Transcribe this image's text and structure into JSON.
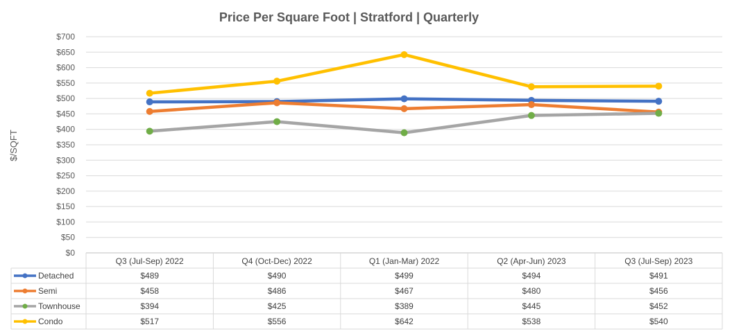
{
  "chart_data": {
    "type": "line",
    "title": "Price Per Square Foot | Stratford | Quarterly",
    "xlabel": "",
    "ylabel": "$/SQFT",
    "ylim": [
      0,
      700
    ],
    "ytick_step": 50,
    "y_tick_labels": [
      "$0",
      "$50",
      "$100",
      "$150",
      "$200",
      "$250",
      "$300",
      "$350",
      "$400",
      "$450",
      "$500",
      "$550",
      "$600",
      "$650",
      "$700"
    ],
    "grid": true,
    "legend": "data-table-bottom",
    "categories": [
      "Q3 (Jul-Sep) 2022",
      "Q4 (Oct-Dec) 2022",
      "Q1 (Jan-Mar) 2022",
      "Q2 (Apr-Jun) 2023",
      "Q3 (Jul-Sep) 2023"
    ],
    "series": [
      {
        "name": "Detached",
        "color": "#4472C4",
        "marker_color": "#4472C4",
        "values": [
          489,
          490,
          499,
          494,
          491
        ],
        "labels": [
          "$489",
          "$490",
          "$499",
          "$494",
          "$491"
        ]
      },
      {
        "name": "Semi",
        "color": "#ED7D31",
        "marker_color": "#ED7D31",
        "values": [
          458,
          486,
          467,
          480,
          456
        ],
        "labels": [
          "$458",
          "$486",
          "$467",
          "$480",
          "$456"
        ]
      },
      {
        "name": "Townhouse",
        "color": "#A5A5A5",
        "marker_color": "#70AD47",
        "values": [
          394,
          425,
          389,
          445,
          452
        ],
        "labels": [
          "$394",
          "$425",
          "$389",
          "$445",
          "$452"
        ]
      },
      {
        "name": "Condo",
        "color": "#FFC000",
        "marker_color": "#FFC000",
        "values": [
          517,
          556,
          642,
          538,
          540
        ],
        "labels": [
          "$517",
          "$556",
          "$642",
          "$538",
          "$540"
        ]
      }
    ]
  }
}
